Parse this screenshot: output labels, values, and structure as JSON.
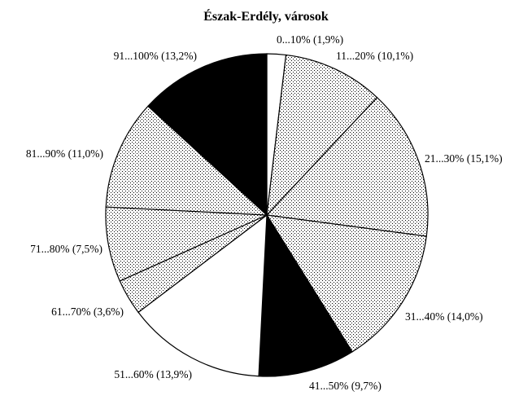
{
  "chart_data": {
    "type": "pie",
    "title": "Észak-Erdély, városok",
    "start_angle_deg": 0,
    "direction": "clockwise",
    "slices": [
      {
        "label": "0...10% (1,9%)",
        "value": 1.9,
        "fill": "white"
      },
      {
        "label": "11...20% (10,1%)",
        "value": 10.1,
        "fill": "dots-light"
      },
      {
        "label": "21...30% (15,1%)",
        "value": 15.1,
        "fill": "dots-light"
      },
      {
        "label": "31...40% (14,0%)",
        "value": 14.0,
        "fill": "dots-light"
      },
      {
        "label": "41...50% (9,7%)",
        "value": 9.7,
        "fill": "black"
      },
      {
        "label": "51...60% (13,9%)",
        "value": 13.9,
        "fill": "white"
      },
      {
        "label": "61...70% (3,6%)",
        "value": 3.6,
        "fill": "dots-light"
      },
      {
        "label": "71...80% (7,5%)",
        "value": 7.5,
        "fill": "dots-light"
      },
      {
        "label": "81...90% (11,0%)",
        "value": 11.0,
        "fill": "dots-light"
      },
      {
        "label": "91...100% (13,2%)",
        "value": 13.2,
        "fill": "black"
      }
    ]
  }
}
